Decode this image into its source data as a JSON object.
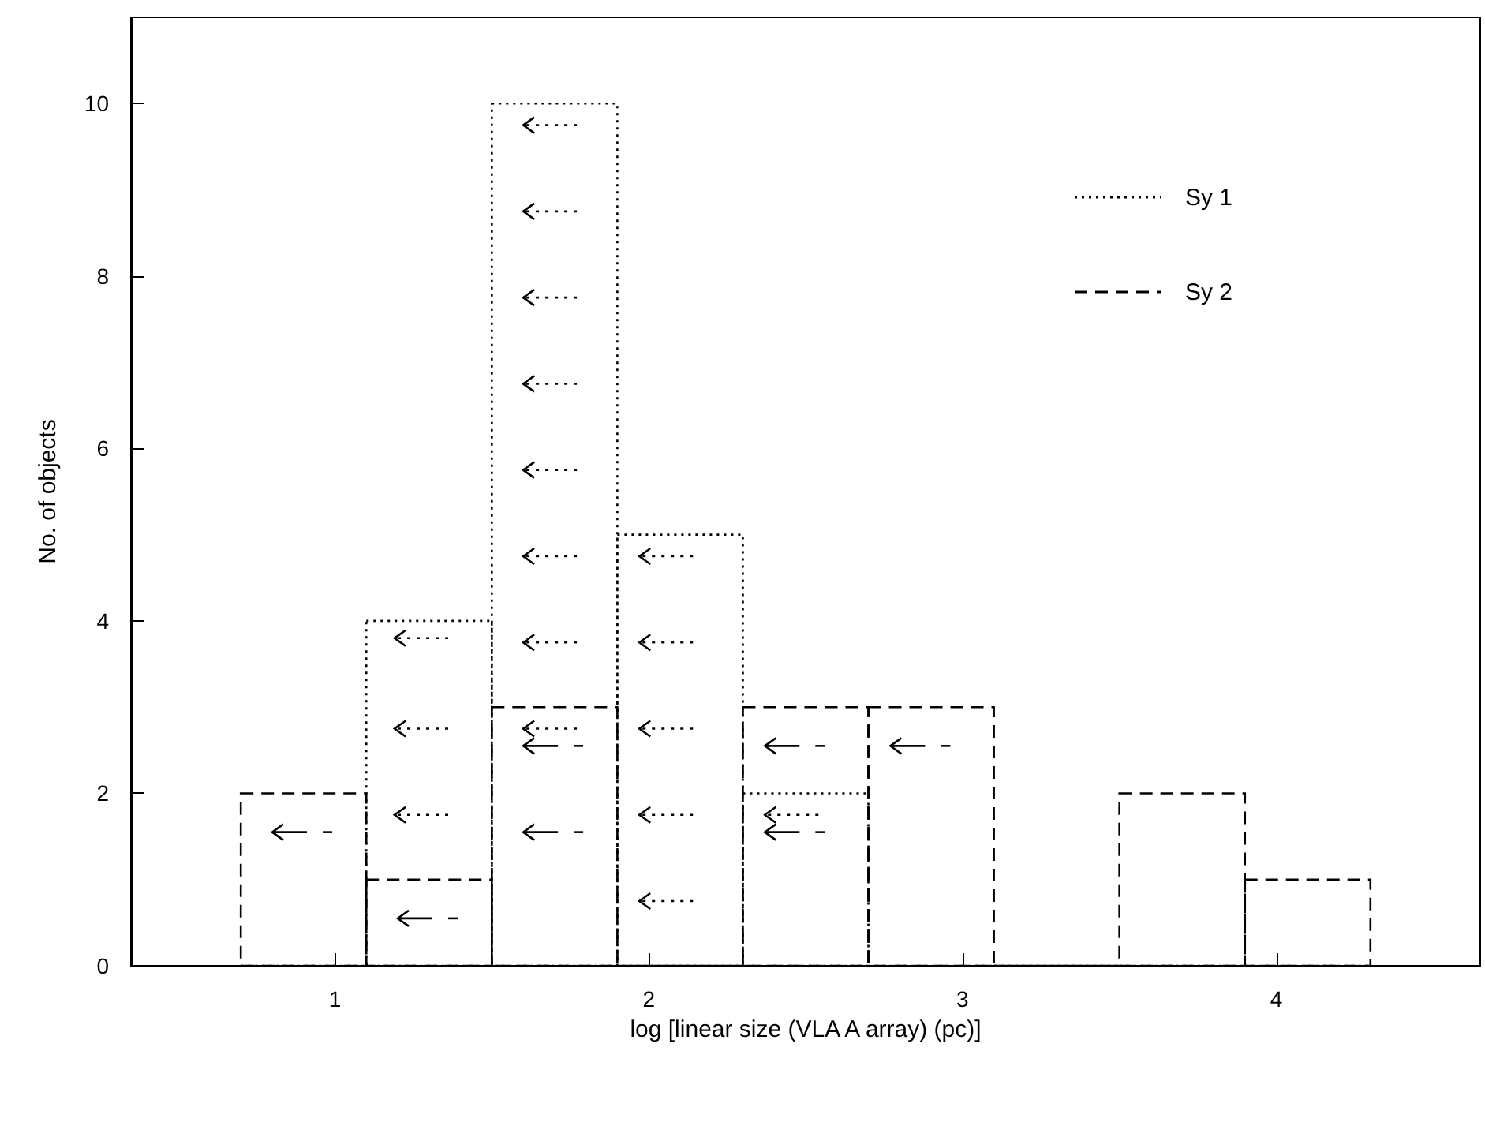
{
  "chart_data": {
    "type": "histogram",
    "xlabel": "log [linear size (VLA A array) (pc)]",
    "ylabel": "No. of objects",
    "bins": [
      0.7,
      1.1,
      1.5,
      1.9,
      2.3,
      2.7,
      3.1,
      3.5,
      3.9,
      4.3
    ],
    "series": [
      {
        "name": "Sy 1",
        "color": "#000000",
        "line_style": "dotted",
        "values": [
          0,
          4,
          10,
          5,
          2,
          0,
          0,
          0,
          0
        ]
      },
      {
        "name": "Sy 2",
        "color": "#000000",
        "line_style": "dashed",
        "values": [
          2,
          1,
          3,
          0,
          3,
          3,
          0,
          2,
          1
        ]
      }
    ],
    "xlim": [
      0.35,
      4.65
    ],
    "ylim": [
      0,
      11
    ],
    "xticks": [
      1,
      2,
      3,
      4
    ],
    "yticks": [
      0,
      2,
      4,
      6,
      8,
      10
    ],
    "grid": false,
    "legend": "top right"
  }
}
